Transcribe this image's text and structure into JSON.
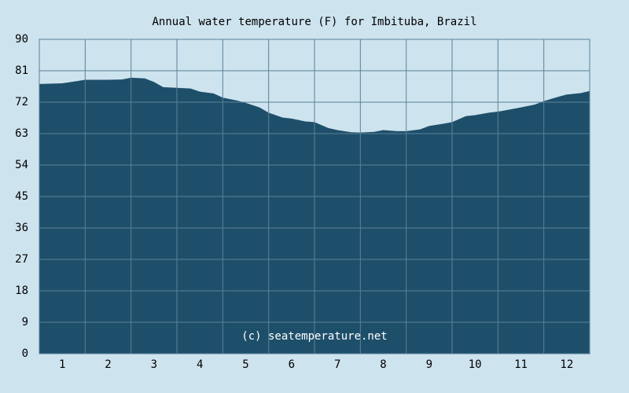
{
  "chart_data": {
    "type": "area",
    "title": "Annual water temperature (F) for Imbituba, Brazil",
    "annotation": "(c) seatemperature.net",
    "x": [
      0.5,
      1.0,
      1.3,
      1.5,
      2.0,
      2.3,
      2.5,
      2.8,
      3.0,
      3.2,
      3.5,
      3.8,
      4.0,
      4.3,
      4.5,
      4.8,
      5.0,
      5.3,
      5.5,
      5.8,
      6.0,
      6.3,
      6.5,
      6.8,
      7.0,
      7.3,
      7.5,
      7.8,
      8.0,
      8.3,
      8.5,
      8.8,
      9.0,
      9.3,
      9.5,
      9.8,
      10.0,
      10.3,
      10.5,
      10.8,
      11.0,
      11.3,
      11.5,
      11.8,
      12.0,
      12.3,
      12.5
    ],
    "values": [
      77.2,
      77.4,
      78.0,
      78.4,
      78.4,
      78.5,
      79.0,
      78.8,
      77.8,
      76.3,
      76.1,
      75.9,
      75.0,
      74.5,
      73.3,
      72.5,
      71.8,
      70.5,
      69.0,
      67.6,
      67.3,
      66.5,
      66.3,
      64.6,
      64.0,
      63.4,
      63.3,
      63.5,
      64.0,
      63.7,
      63.7,
      64.2,
      65.2,
      65.8,
      66.3,
      68.0,
      68.3,
      69.0,
      69.3,
      70.0,
      70.5,
      71.3,
      72.3,
      73.5,
      74.2,
      74.6,
      75.2
    ],
    "color": "#1e4f6a",
    "xlim": [
      0.5,
      12.5
    ],
    "xticks": [
      1,
      2,
      3,
      4,
      5,
      6,
      7,
      8,
      9,
      10,
      11,
      12
    ],
    "ylim": [
      0,
      90
    ],
    "yticks": [
      0,
      9,
      18,
      27,
      36,
      45,
      54,
      63,
      72,
      81,
      90
    ],
    "grid": true
  }
}
